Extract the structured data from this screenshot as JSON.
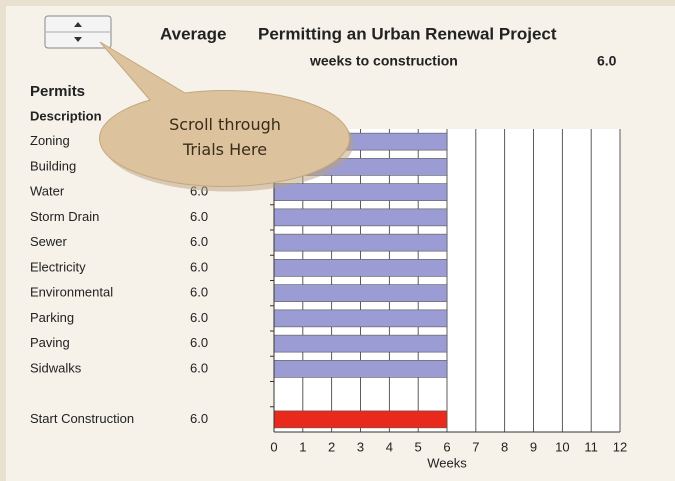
{
  "mode_label": "Average",
  "callout": {
    "text": "Scroll through Trials Here"
  },
  "chart_data": {
    "type": "bar",
    "orientation": "horizontal",
    "title": "Permitting an Urban Renewal Project",
    "subtitle": "weeks to construction",
    "total": 6,
    "total_label": "6.0",
    "column_header": "Permits",
    "category_header": "Description",
    "categories": [
      "Zoning",
      "Building",
      "Water",
      "Storm Drain",
      "Sewer",
      "Electricity",
      "Environmental",
      "Parking",
      "Paving",
      "Sidwalks",
      null,
      "Start Construction"
    ],
    "values": [
      6,
      6,
      6,
      6,
      6,
      6,
      6,
      6,
      6,
      6,
      null,
      6
    ],
    "value_labels": [
      "6.0",
      "6.0",
      "6.0",
      "6.0",
      "6.0",
      "6.0",
      "6.0",
      "6.0",
      "6.0",
      "6.0",
      null,
      "6.0"
    ],
    "colors": [
      "#9c9cd4",
      "#9c9cd4",
      "#9c9cd4",
      "#9c9cd4",
      "#9c9cd4",
      "#9c9cd4",
      "#9c9cd4",
      "#9c9cd4",
      "#9c9cd4",
      "#9c9cd4",
      null,
      "#e8291c"
    ],
    "xlim": [
      0,
      12
    ],
    "xticks": [
      0,
      1,
      2,
      3,
      4,
      5,
      6,
      7,
      8,
      9,
      10,
      11,
      12
    ],
    "xlabel": "Weeks",
    "grid": true
  }
}
